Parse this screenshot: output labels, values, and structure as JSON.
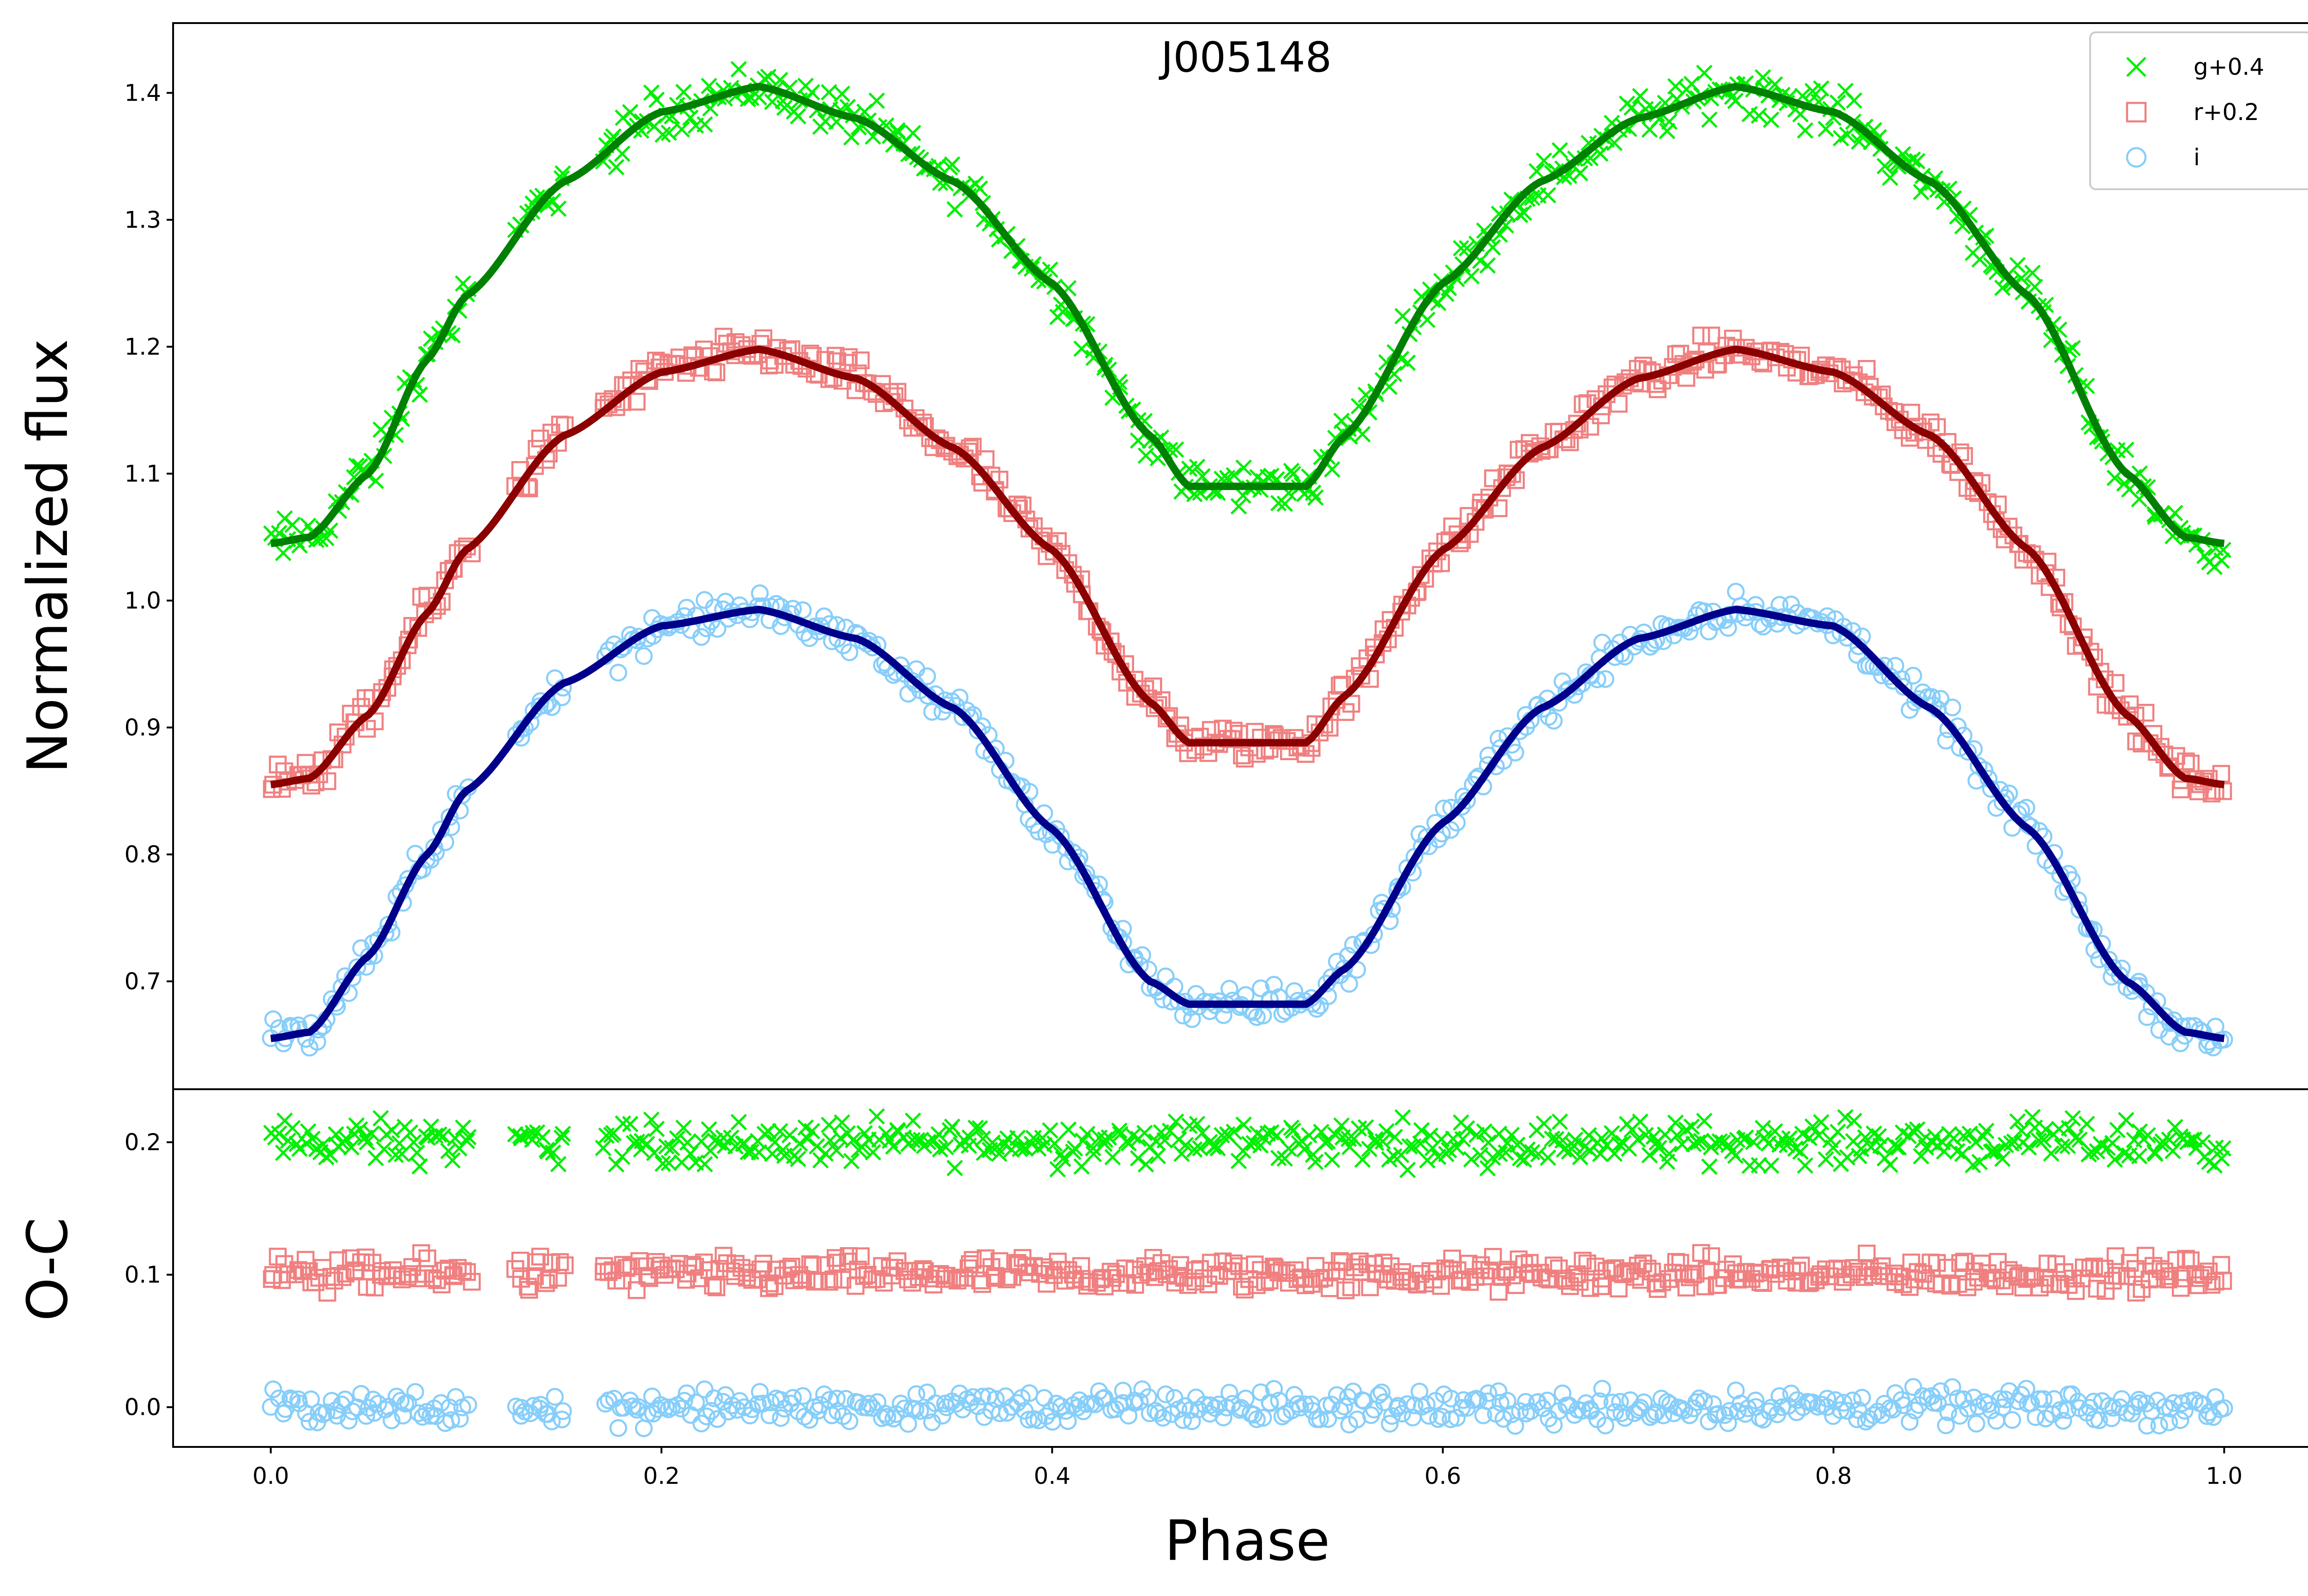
{
  "chart_data": {
    "type": "scatter",
    "title": "J005148",
    "xlabel": "Phase",
    "xlim": [
      -0.05,
      1.05
    ],
    "xticks": [
      0.0,
      0.2,
      0.4,
      0.6,
      0.8,
      1.0
    ],
    "xtick_labels": [
      "0.0",
      "0.2",
      "0.4",
      "0.6",
      "0.8",
      "1.0"
    ],
    "legend_position": "top-right",
    "top_panel": {
      "ylabel": "Normalized flux",
      "ylim": [
        0.615,
        1.455
      ],
      "yticks": [
        0.7,
        0.8,
        0.9,
        1.0,
        1.1,
        1.2,
        1.3,
        1.4
      ],
      "ytick_labels": [
        "0.7",
        "0.8",
        "0.9",
        "1.0",
        "1.1",
        "1.2",
        "1.3",
        "1.4"
      ],
      "model_curves": [
        {
          "band": "g",
          "color": "#008000",
          "x": [
            0.0,
            0.02,
            0.05,
            0.08,
            0.1,
            0.15,
            0.2,
            0.25,
            0.3,
            0.35,
            0.4,
            0.45,
            0.47,
            0.5,
            0.53,
            0.55,
            0.6,
            0.65,
            0.7,
            0.75,
            0.8,
            0.85,
            0.9,
            0.95,
            0.98,
            1.0
          ],
          "y": [
            1.045,
            1.05,
            1.1,
            1.19,
            1.24,
            1.33,
            1.385,
            1.405,
            1.38,
            1.33,
            1.25,
            1.13,
            1.09,
            1.09,
            1.09,
            1.13,
            1.25,
            1.33,
            1.38,
            1.405,
            1.385,
            1.33,
            1.24,
            1.1,
            1.05,
            1.045
          ]
        },
        {
          "band": "r",
          "color": "#8b0000",
          "x": [
            0.0,
            0.02,
            0.05,
            0.08,
            0.1,
            0.15,
            0.2,
            0.25,
            0.3,
            0.35,
            0.4,
            0.45,
            0.47,
            0.5,
            0.53,
            0.55,
            0.6,
            0.65,
            0.7,
            0.75,
            0.8,
            0.85,
            0.9,
            0.95,
            0.98,
            1.0
          ],
          "y": [
            0.855,
            0.86,
            0.91,
            0.99,
            1.04,
            1.13,
            1.18,
            1.198,
            1.175,
            1.12,
            1.04,
            0.92,
            0.888,
            0.888,
            0.888,
            0.925,
            1.04,
            1.12,
            1.175,
            1.198,
            1.18,
            1.13,
            1.04,
            0.91,
            0.86,
            0.855
          ]
        },
        {
          "band": "i",
          "color": "#00008b",
          "x": [
            0.0,
            0.02,
            0.05,
            0.08,
            0.1,
            0.15,
            0.2,
            0.25,
            0.3,
            0.35,
            0.4,
            0.45,
            0.47,
            0.5,
            0.53,
            0.55,
            0.6,
            0.65,
            0.7,
            0.75,
            0.8,
            0.85,
            0.9,
            0.95,
            0.98,
            1.0
          ],
          "y": [
            0.655,
            0.66,
            0.72,
            0.8,
            0.85,
            0.935,
            0.98,
            0.993,
            0.97,
            0.915,
            0.82,
            0.7,
            0.682,
            0.682,
            0.682,
            0.71,
            0.825,
            0.915,
            0.97,
            0.993,
            0.98,
            0.915,
            0.82,
            0.7,
            0.66,
            0.655
          ]
        }
      ]
    },
    "bottom_panel": {
      "ylabel": "O-C",
      "ylim": [
        -0.03,
        0.24
      ],
      "yticks": [
        0.0,
        0.1,
        0.2
      ],
      "ytick_labels": [
        "0.0",
        "0.1",
        "0.2"
      ],
      "offsets": {
        "g": 0.2,
        "r": 0.1,
        "i": 0.0
      },
      "scatter_amplitude": 0.008
    },
    "series": [
      {
        "name": "g+0.4",
        "band": "g",
        "marker": "x",
        "color": "#00ee00",
        "offset": 0.4,
        "scatter": 0.009
      },
      {
        "name": "r+0.2",
        "band": "r",
        "marker": "square",
        "color": "#f08080",
        "offset": 0.2,
        "scatter": 0.007
      },
      {
        "name": "i",
        "band": "i",
        "marker": "circle",
        "color": "#87cefa",
        "offset": 0.0,
        "scatter": 0.007
      }
    ]
  }
}
